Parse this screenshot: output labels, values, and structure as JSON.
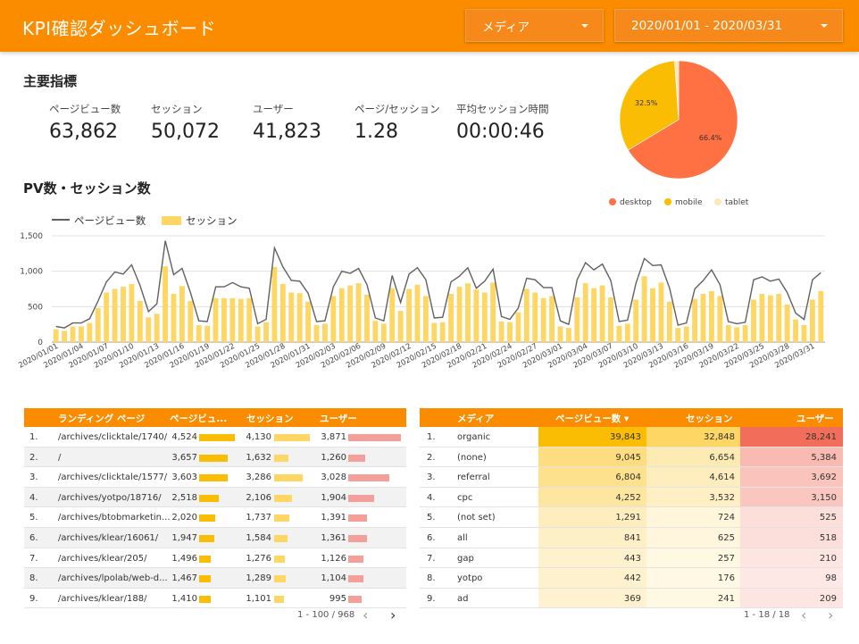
{
  "header": {
    "title": "KPI確認ダッシュボード",
    "media_filter": "メディア",
    "date_range": "2020/01/01 - 2020/03/31",
    "color": "#fb8c00"
  },
  "kpi_section": {
    "title": "主要指標",
    "items": [
      {
        "label": "ページビュー数",
        "value": "63,862"
      },
      {
        "label": "セッション",
        "value": "50,072"
      },
      {
        "label": "ユーザー",
        "value": "41,823"
      },
      {
        "label": "ページ/セッション",
        "value": "1.28"
      },
      {
        "label": "平均セッション時間",
        "value": "00:00:46"
      }
    ]
  },
  "trend_section": {
    "title": "PV数・セッション数",
    "legend_pv": "ページビュー数",
    "legend_session": "セッション"
  },
  "pie_legend": [
    "desktop",
    "mobile",
    "tablet"
  ],
  "chart_data": [
    {
      "type": "bar+line",
      "title": "PV数・セッション数",
      "ylim": [
        0,
        1500
      ],
      "yticks": [
        "0",
        "500",
        "1,000",
        "1,500"
      ],
      "grid": true,
      "legend": "top-left",
      "series": [
        {
          "name": "ページビュー数",
          "kind": "line",
          "color": "#616161",
          "values": [
            220,
            200,
            270,
            270,
            330,
            580,
            850,
            990,
            960,
            1090,
            800,
            430,
            540,
            1430,
            950,
            1040,
            700,
            300,
            290,
            780,
            780,
            840,
            780,
            760,
            260,
            320,
            1330,
            1060,
            870,
            860,
            690,
            290,
            300,
            780,
            1000,
            970,
            1040,
            810,
            340,
            300,
            940,
            560,
            960,
            1050,
            880,
            340,
            350,
            850,
            930,
            1050,
            760,
            860,
            1030,
            360,
            320,
            480,
            900,
            880,
            770,
            770,
            300,
            250,
            880,
            1120,
            1020,
            1100,
            870,
            290,
            310,
            830,
            1180,
            1080,
            1090,
            760,
            240,
            270,
            750,
            870,
            1020,
            810,
            290,
            260,
            280,
            880,
            920,
            860,
            890,
            700,
            410,
            320,
            880,
            980
          ]
        },
        {
          "name": "セッション",
          "kind": "bar",
          "color": "#fdd663",
          "values": [
            180,
            160,
            220,
            220,
            270,
            480,
            700,
            750,
            780,
            820,
            580,
            350,
            400,
            1070,
            680,
            790,
            580,
            240,
            230,
            620,
            620,
            620,
            610,
            620,
            220,
            280,
            1060,
            820,
            700,
            690,
            570,
            240,
            260,
            650,
            760,
            800,
            830,
            670,
            300,
            260,
            760,
            440,
            750,
            810,
            650,
            270,
            280,
            680,
            780,
            830,
            740,
            700,
            840,
            290,
            280,
            420,
            750,
            700,
            620,
            650,
            220,
            200,
            630,
            830,
            760,
            800,
            630,
            230,
            260,
            600,
            930,
            760,
            840,
            570,
            200,
            220,
            610,
            680,
            720,
            650,
            240,
            210,
            240,
            600,
            680,
            660,
            680,
            530,
            320,
            240,
            600,
            720
          ]
        }
      ],
      "x_tick_labels": [
        "2020/01/01",
        "2020/01/04",
        "2020/01/07",
        "2020/01/10",
        "2020/01/13",
        "2020/01/16",
        "2020/01/19",
        "2020/01/22",
        "2020/01/25",
        "2020/01/28",
        "2020/01/31",
        "2020/02/03",
        "2020/02/06",
        "2020/02/09",
        "2020/02/12",
        "2020/02/15",
        "2020/02/18",
        "2020/02/21",
        "2020/02/24",
        "2020/02/27",
        "2020/03/01",
        "2020/03/04",
        "2020/03/07",
        "2020/03/10",
        "2020/03/13",
        "2020/03/16",
        "2020/03/19",
        "2020/03/22",
        "2020/03/25",
        "2020/03/28",
        "2020/03/31"
      ]
    },
    {
      "type": "pie",
      "legend": "bottom",
      "slices": [
        {
          "label": "desktop",
          "value": 66.4,
          "display": "66.4%",
          "color": "#ff7043"
        },
        {
          "label": "mobile",
          "value": 32.5,
          "display": "32.5%",
          "color": "#fbbc04"
        },
        {
          "label": "tablet",
          "value": 1.1,
          "display": "",
          "color": "#fce8b2"
        }
      ]
    }
  ],
  "landing_table": {
    "headers": [
      "ランディング ページ",
      "ページビュ...",
      "セッション",
      "ユーザー"
    ],
    "max": [
      4524,
      4130,
      3871
    ],
    "rows": [
      {
        "idx": "1.",
        "page": "/archives/clicktale/1740/",
        "pv": "4,524",
        "pvn": 4524,
        "ses": "4,130",
        "sesn": 4130,
        "usr": "3,871",
        "usrn": 3871
      },
      {
        "idx": "2.",
        "page": "/",
        "pv": "3,657",
        "pvn": 3657,
        "ses": "1,632",
        "sesn": 1632,
        "usr": "1,260",
        "usrn": 1260
      },
      {
        "idx": "3.",
        "page": "/archives/clicktale/1577/",
        "pv": "3,603",
        "pvn": 3603,
        "ses": "3,286",
        "sesn": 3286,
        "usr": "3,028",
        "usrn": 3028
      },
      {
        "idx": "4.",
        "page": "/archives/yotpo/18716/",
        "pv": "2,518",
        "pvn": 2518,
        "ses": "2,106",
        "sesn": 2106,
        "usr": "1,904",
        "usrn": 1904
      },
      {
        "idx": "5.",
        "page": "/archives/btobmarketin...",
        "pv": "2,020",
        "pvn": 2020,
        "ses": "1,737",
        "sesn": 1737,
        "usr": "1,391",
        "usrn": 1391
      },
      {
        "idx": "6.",
        "page": "/archives/klear/16061/",
        "pv": "1,947",
        "pvn": 1947,
        "ses": "1,584",
        "sesn": 1584,
        "usr": "1,361",
        "usrn": 1361
      },
      {
        "idx": "7.",
        "page": "/archives/klear/205/",
        "pv": "1,496",
        "pvn": 1496,
        "ses": "1,276",
        "sesn": 1276,
        "usr": "1,126",
        "usrn": 1126
      },
      {
        "idx": "8.",
        "page": "/archives/lpolab/web-d...",
        "pv": "1,467",
        "pvn": 1467,
        "ses": "1,289",
        "sesn": 1289,
        "usr": "1,104",
        "usrn": 1104
      },
      {
        "idx": "9.",
        "page": "/archives/klear/188/",
        "pv": "1,410",
        "pvn": 1410,
        "ses": "1,101",
        "sesn": 1101,
        "usr": "995",
        "usrn": 995
      }
    ],
    "pager": "1 - 100 / 968"
  },
  "media_table": {
    "headers": [
      "メディア",
      "ページビュー数 ▾",
      "セッション",
      "ユーザー"
    ],
    "max": [
      39843,
      32848,
      28241
    ],
    "rows": [
      {
        "idx": "1.",
        "media": "organic",
        "pv": "39,843",
        "pvn": 39843,
        "ses": "32,848",
        "sesn": 32848,
        "usr": "28,241",
        "usrn": 28241
      },
      {
        "idx": "2.",
        "media": "(none)",
        "pv": "9,045",
        "pvn": 9045,
        "ses": "6,654",
        "sesn": 6654,
        "usr": "5,384",
        "usrn": 5384
      },
      {
        "idx": "3.",
        "media": "referral",
        "pv": "6,804",
        "pvn": 6804,
        "ses": "4,614",
        "sesn": 4614,
        "usr": "3,692",
        "usrn": 3692
      },
      {
        "idx": "4.",
        "media": "cpc",
        "pv": "4,252",
        "pvn": 4252,
        "ses": "3,532",
        "sesn": 3532,
        "usr": "3,150",
        "usrn": 3150
      },
      {
        "idx": "5.",
        "media": "(not set)",
        "pv": "1,291",
        "pvn": 1291,
        "ses": "724",
        "sesn": 724,
        "usr": "525",
        "usrn": 525
      },
      {
        "idx": "6.",
        "media": "all",
        "pv": "841",
        "pvn": 841,
        "ses": "625",
        "sesn": 625,
        "usr": "518",
        "usrn": 518
      },
      {
        "idx": "7.",
        "media": "gap",
        "pv": "443",
        "pvn": 443,
        "ses": "257",
        "sesn": 257,
        "usr": "210",
        "usrn": 210
      },
      {
        "idx": "8.",
        "media": "yotpo",
        "pv": "442",
        "pvn": 442,
        "ses": "176",
        "sesn": 176,
        "usr": "98",
        "usrn": 98
      },
      {
        "idx": "9.",
        "media": "ad",
        "pv": "369",
        "pvn": 369,
        "ses": "241",
        "sesn": 241,
        "usr": "209",
        "usrn": 209
      }
    ],
    "pager": "1 - 18 / 18"
  },
  "colors": {
    "pv_bar": "#fbbc04",
    "ses_bar": "#fdd663",
    "usr_bar": "#f4a09a"
  }
}
